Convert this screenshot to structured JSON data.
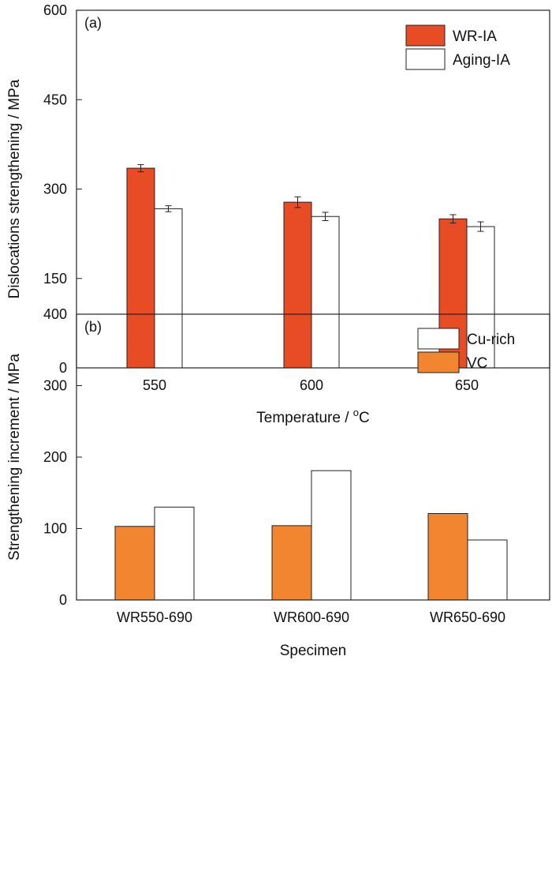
{
  "colors": {
    "wr_ia": "#e84c25",
    "vc": "#f28530",
    "outline": "#222222",
    "background": "#ffffff"
  },
  "chart_data": [
    {
      "type": "bar",
      "panel_label": "(a)",
      "categories": [
        "550",
        "600",
        "650"
      ],
      "xlabel_main": "Temperature / ",
      "xlabel_sup": "o",
      "xlabel_end": "C",
      "ylabel": "Dislocations strengthening / MPa",
      "ylim": [
        0,
        600
      ],
      "yticks": [
        0,
        150,
        300,
        450,
        600
      ],
      "legend_position": "top-right",
      "grid": false,
      "series": [
        {
          "name": "WR-IA",
          "color": "#e84c25",
          "values": [
            335,
            278,
            250
          ],
          "errors": [
            6,
            9,
            7
          ]
        },
        {
          "name": "Aging-IA",
          "color": "#ffffff",
          "values": [
            267,
            254,
            237
          ],
          "errors": [
            5,
            7,
            8
          ]
        }
      ]
    },
    {
      "type": "bar",
      "panel_label": "(b)",
      "categories": [
        "WR550-690",
        "WR600-690",
        "WR650-690"
      ],
      "xlabel": "Specimen",
      "ylabel": "Strengthening increment / MPa",
      "ylim": [
        0,
        400
      ],
      "yticks": [
        0,
        100,
        200,
        300,
        400
      ],
      "legend_position": "top-right",
      "grid": false,
      "series": [
        {
          "name": "VC",
          "color": "#f28530",
          "values": [
            103,
            104,
            121
          ]
        },
        {
          "name": "Cu-rich",
          "color": "#ffffff",
          "values": [
            130,
            181,
            84
          ]
        }
      ],
      "legend_order": [
        "Cu-rich",
        "VC"
      ]
    }
  ]
}
